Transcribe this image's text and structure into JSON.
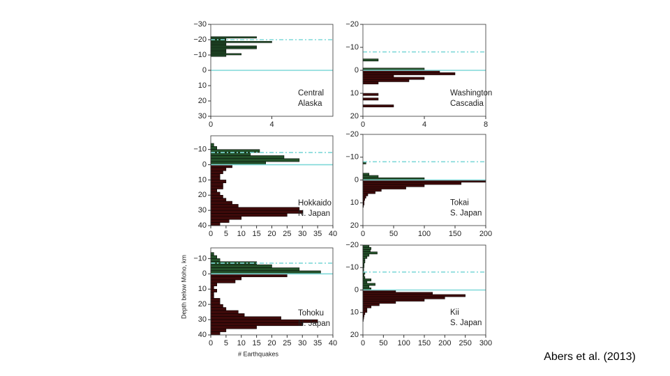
{
  "y_label": "Depth below Moho, km",
  "x_label": "# Earthquakes",
  "citation": "Abers et al. (2013)",
  "chart_data": [
    {
      "type": "histogram",
      "label": [
        "Central",
        "Alaska"
      ],
      "orientation": "horizontal",
      "color_above_moho": "#24512a",
      "color_below_moho": "#3e0a0a",
      "reference_color": "#7fd8d8",
      "bins": [
        -22,
        -21,
        -20,
        -19,
        -18,
        -17,
        -16,
        -15,
        -14,
        -13,
        -12,
        -11,
        -10,
        -9,
        -8,
        -7
      ],
      "values": [
        3,
        1,
        1,
        4,
        1,
        1,
        3,
        3,
        1,
        1,
        1,
        2,
        1,
        0,
        0
      ],
      "reference_lines": [
        {
          "value": -20,
          "style": "dashed"
        },
        {
          "value": 0,
          "style": "solid"
        }
      ],
      "xlim": [
        0,
        8
      ],
      "xticks": [
        0,
        4
      ],
      "ylim": [
        -30,
        30
      ],
      "yticks": [
        {
          "value": -30,
          "label": "−30"
        },
        {
          "value": -20,
          "label": "−20"
        },
        {
          "value": -10,
          "label": "−10"
        },
        0,
        10,
        20,
        30
      ]
    },
    {
      "type": "histogram",
      "label": [
        "Washington",
        "Cascadia"
      ],
      "orientation": "horizontal",
      "color_above_moho": "#24512a",
      "color_below_moho": "#3e0a0a",
      "reference_color": "#7fd8d8",
      "bins": [
        -6,
        -5,
        -4,
        -3,
        -2,
        -1,
        0,
        1,
        2,
        3,
        4,
        5,
        6,
        7,
        8,
        9,
        10,
        11,
        12,
        13,
        14,
        15,
        16,
        17
      ],
      "values": [
        0,
        1,
        0,
        0,
        0,
        4,
        5,
        6,
        2,
        4,
        3,
        1,
        0,
        0,
        0,
        0,
        1,
        0,
        1,
        0,
        0,
        2,
        0
      ],
      "reference_lines": [
        {
          "value": -8,
          "style": "dashed"
        },
        {
          "value": 0,
          "style": "solid"
        }
      ],
      "xlim": [
        0,
        8
      ],
      "xticks": [
        0,
        4,
        8
      ],
      "ylim": [
        -20,
        20
      ],
      "yticks": [
        {
          "value": -20,
          "label": "−20"
        },
        {
          "value": -10,
          "label": "−10"
        },
        0,
        10,
        20
      ]
    },
    {
      "type": "histogram",
      "label": [
        "Hokkaido",
        "N. Japan"
      ],
      "orientation": "horizontal",
      "color_above_moho": "#24512a",
      "color_below_moho": "#3e0a0a",
      "reference_color": "#7fd8d8",
      "bins": [
        -14,
        -12,
        -10,
        -8,
        -6,
        -4,
        -2,
        0,
        2,
        4,
        6,
        8,
        10,
        12,
        14,
        16,
        18,
        20,
        22,
        24,
        26,
        28,
        30,
        32,
        34,
        36,
        38,
        40
      ],
      "values": [
        1,
        2,
        16,
        13,
        24,
        29,
        18,
        7,
        5,
        4,
        3,
        3,
        5,
        4,
        4,
        2,
        3,
        4,
        5,
        7,
        9,
        29,
        30,
        25,
        10,
        6,
        3
      ],
      "reference_lines": [
        {
          "value": -8,
          "style": "dashed"
        },
        {
          "value": 0,
          "style": "solid"
        }
      ],
      "xlim": [
        0,
        40
      ],
      "xticks": [
        0,
        5,
        10,
        15,
        20,
        25,
        30,
        35,
        40
      ],
      "ylim": [
        -19,
        40
      ],
      "yticks": [
        {
          "value": -10,
          "label": "−10"
        },
        0,
        10,
        20,
        30,
        40
      ]
    },
    {
      "type": "histogram",
      "label": [
        "Tokai",
        "S. Japan"
      ],
      "orientation": "horizontal",
      "color_above_moho": "#24512a",
      "color_below_moho": "#3e0a0a",
      "reference_color": "#7fd8d8",
      "bins": [
        -8,
        -7,
        -6,
        -5,
        -4,
        -3,
        -2,
        -1,
        0,
        1,
        2,
        3,
        4,
        5,
        6,
        7,
        8,
        9,
        10,
        11,
        12
      ],
      "values": [
        5,
        0,
        0,
        0,
        0,
        10,
        25,
        100,
        200,
        160,
        100,
        70,
        30,
        20,
        8,
        5,
        3,
        2,
        2,
        1
      ],
      "reference_lines": [
        {
          "value": -8,
          "style": "dashed"
        },
        {
          "value": 0,
          "style": "solid"
        }
      ],
      "xlim": [
        0,
        200
      ],
      "xticks": [
        0,
        50,
        100,
        150,
        200
      ],
      "ylim": [
        -20,
        20
      ],
      "yticks": [
        {
          "value": -20,
          "label": "−20"
        },
        {
          "value": -10,
          "label": "−10"
        },
        0,
        10,
        20
      ]
    },
    {
      "type": "histogram",
      "label": [
        "Tohoku",
        "N. Japan"
      ],
      "orientation": "horizontal",
      "color_above_moho": "#24512a",
      "color_below_moho": "#3e0a0a",
      "reference_color": "#7fd8d8",
      "bins": [
        -14,
        -12,
        -10,
        -8,
        -6,
        -4,
        -2,
        0,
        2,
        4,
        6,
        8,
        10,
        12,
        14,
        16,
        18,
        20,
        22,
        24,
        26,
        28,
        30,
        32,
        34,
        36,
        38,
        40
      ],
      "values": [
        1,
        2,
        3,
        15,
        20,
        29,
        36,
        25,
        10,
        8,
        2,
        1,
        2,
        1,
        1,
        3,
        3,
        4,
        5,
        9,
        11,
        23,
        35,
        30,
        15,
        5,
        3
      ],
      "reference_lines": [
        {
          "value": -7,
          "style": "dashed"
        },
        {
          "value": 0,
          "style": "solid"
        }
      ],
      "xlim": [
        0,
        40
      ],
      "xticks": [
        0,
        5,
        10,
        15,
        20,
        25,
        30,
        35,
        40
      ],
      "ylim": [
        -17,
        40
      ],
      "yticks": [
        {
          "value": -10,
          "label": "−10"
        },
        0,
        10,
        20,
        30,
        40
      ]
    },
    {
      "type": "histogram",
      "label": [
        "Kii",
        "S. Japan"
      ],
      "orientation": "horizontal",
      "color_above_moho": "#24512a",
      "color_below_moho": "#3e0a0a",
      "reference_color": "#7fd8d8",
      "bins": [
        -20,
        -19,
        -18,
        -17,
        -16,
        -15,
        -14,
        -13,
        -12,
        -11,
        -10,
        -9,
        -8,
        -7,
        -6,
        -5,
        -4,
        -3,
        -2,
        -1,
        0,
        1,
        2,
        3,
        4,
        5,
        6,
        7,
        8,
        9,
        10,
        11,
        12,
        13,
        14
      ],
      "values": [
        15,
        20,
        18,
        35,
        15,
        10,
        5,
        5,
        3,
        3,
        2,
        2,
        5,
        3,
        5,
        20,
        10,
        30,
        15,
        20,
        80,
        170,
        250,
        200,
        150,
        80,
        40,
        20,
        10,
        10,
        5,
        3,
        2,
        1
      ],
      "reference_lines": [
        {
          "value": -8,
          "style": "dashed"
        },
        {
          "value": 0,
          "style": "solid"
        }
      ],
      "xlim": [
        0,
        300
      ],
      "xticks": [
        0,
        50,
        100,
        150,
        200,
        250,
        300
      ],
      "ylim": [
        -20,
        20
      ],
      "yticks": [
        {
          "value": -20,
          "label": "−20"
        },
        {
          "value": -10,
          "label": "−10"
        },
        0,
        10,
        20
      ]
    }
  ]
}
